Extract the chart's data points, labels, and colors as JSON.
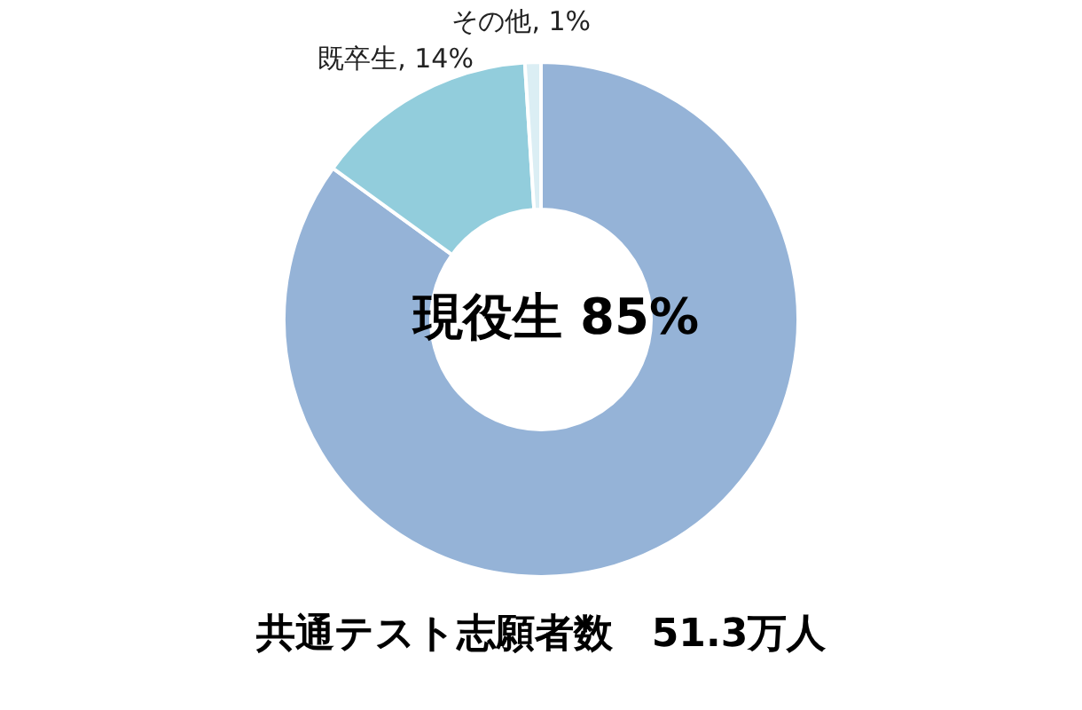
{
  "chart_data": {
    "type": "donut",
    "title": "共通テスト志願者数　51.3万人",
    "categories": [
      "現役生",
      "既卒生",
      "その他"
    ],
    "values": [
      85,
      14,
      1
    ],
    "colors": [
      "#95b3d7",
      "#92cddc",
      "#dbeef4"
    ],
    "value_labels": [
      "85%",
      ", 14%",
      ", 1%"
    ]
  }
}
